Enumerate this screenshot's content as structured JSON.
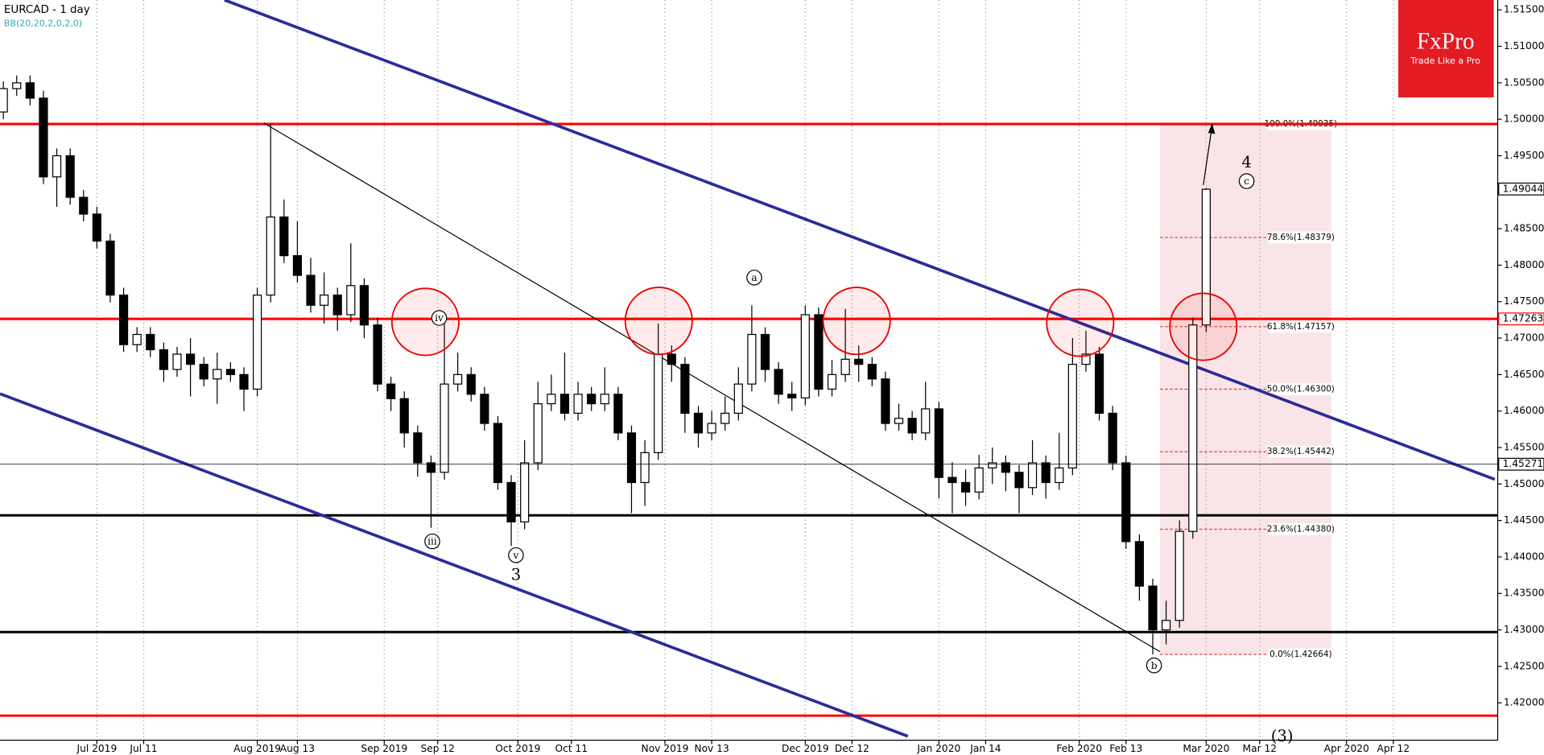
{
  "chart_data": {
    "type": "candlestick",
    "title": "EURCAD - 1 day",
    "subtitle": "BB(20,20,2,0,2,0)",
    "logo": {
      "name": "FxPro",
      "slogan": "Trade Like a Pro"
    },
    "xlim": [
      -0.5,
      222
    ],
    "xticks": [
      {
        "value": 14,
        "label": "Jul 2019"
      },
      {
        "value": 21,
        "label": "Jul 11"
      },
      {
        "value": 38,
        "label": "Aug 2019"
      },
      {
        "value": 44,
        "label": "Aug 13"
      },
      {
        "value": 57,
        "label": "Sep 2019"
      },
      {
        "value": 65,
        "label": "Sep 12"
      },
      {
        "value": 77,
        "label": "Oct 2019"
      },
      {
        "value": 85,
        "label": "Oct 11"
      },
      {
        "value": 99,
        "label": "Nov 2019"
      },
      {
        "value": 106,
        "label": "Nov 13"
      },
      {
        "value": 120,
        "label": "Dec 2019"
      },
      {
        "value": 127,
        "label": "Dec 12"
      },
      {
        "value": 140,
        "label": "Jan 2020"
      },
      {
        "value": 147,
        "label": "Jan 14"
      },
      {
        "value": 161,
        "label": "Feb 2020"
      },
      {
        "value": 168,
        "label": "Feb 13"
      },
      {
        "value": 180,
        "label": "Mar 2020"
      },
      {
        "value": 188,
        "label": "Mar 12"
      },
      {
        "value": 201,
        "label": "Apr 2020"
      },
      {
        "value": 208,
        "label": "Apr 12"
      }
    ],
    "ylim": [
      1.41487,
      1.51635
    ],
    "yticks": [
      {
        "value": 1.515,
        "label": "1.51500"
      },
      {
        "value": 1.51,
        "label": "1.51000"
      },
      {
        "value": 1.505,
        "label": "1.50500"
      },
      {
        "value": 1.5,
        "label": "1.50000"
      },
      {
        "value": 1.495,
        "label": "1.49500"
      },
      {
        "value": 1.49,
        "label": "1.49000"
      },
      {
        "value": 1.485,
        "label": "1.48500"
      },
      {
        "value": 1.48,
        "label": "1.48000"
      },
      {
        "value": 1.475,
        "label": "1.47500"
      },
      {
        "value": 1.47,
        "label": "1.47000"
      },
      {
        "value": 1.465,
        "label": "1.46500"
      },
      {
        "value": 1.46,
        "label": "1.46000"
      },
      {
        "value": 1.455,
        "label": "1.45500"
      },
      {
        "value": 1.45,
        "label": "1.45000"
      },
      {
        "value": 1.445,
        "label": "1.44500"
      },
      {
        "value": 1.44,
        "label": "1.44000"
      },
      {
        "value": 1.435,
        "label": "1.43500"
      },
      {
        "value": 1.43,
        "label": "1.43000"
      },
      {
        "value": 1.425,
        "label": "1.42500"
      },
      {
        "value": 1.42,
        "label": "1.42000"
      }
    ],
    "grid": true,
    "x": [
      0,
      2,
      4,
      6,
      8,
      10,
      12,
      14,
      16,
      18,
      20,
      22,
      24,
      26,
      28,
      30,
      32,
      34,
      36,
      38,
      40,
      42,
      44,
      46,
      48,
      50,
      52,
      54,
      56,
      58,
      60,
      62,
      64,
      66,
      68,
      70,
      72,
      74,
      76,
      78,
      80,
      82,
      84,
      86,
      88,
      90,
      92,
      94,
      96,
      98,
      100,
      102,
      104,
      106,
      108,
      110,
      112,
      114,
      116,
      118,
      120,
      122,
      124,
      126,
      128,
      130,
      132,
      134,
      136,
      138,
      140,
      142,
      144,
      146,
      148,
      150,
      152,
      154,
      156,
      158,
      160,
      162,
      164,
      166,
      168,
      170,
      172,
      174,
      176,
      178,
      180
    ],
    "open": [
      1.501,
      1.5042,
      1.505,
      1.5029,
      1.4921,
      1.495,
      1.4893,
      1.487,
      1.4833,
      1.4759,
      1.4691,
      1.4705,
      1.4684,
      1.4657,
      1.4678,
      1.4664,
      1.4644,
      1.4657,
      1.465,
      1.463,
      1.4759,
      1.4866,
      1.4813,
      1.4786,
      1.4745,
      1.4759,
      1.4732,
      1.4772,
      1.4718,
      1.4637,
      1.4617,
      1.457,
      1.4529,
      1.4516,
      1.4637,
      1.465,
      1.4623,
      1.4583,
      1.4502,
      1.4448,
      1.4529,
      1.461,
      1.4623,
      1.4597,
      1.4623,
      1.461,
      1.4623,
      1.457,
      1.4502,
      1.4543,
      1.4678,
      1.4664,
      1.4597,
      1.457,
      1.4583,
      1.4597,
      1.4637,
      1.4705,
      1.4657,
      1.4623,
      1.4618,
      1.4732,
      1.463,
      1.465,
      1.4671,
      1.4664,
      1.4644,
      1.4583,
      1.459,
      1.457,
      1.4603,
      1.4509,
      1.4502,
      1.4489,
      1.4522,
      1.4529,
      1.4516,
      1.4495,
      1.4529,
      1.4502,
      1.4522,
      1.4664,
      1.4678,
      1.4597,
      1.4529,
      1.4421,
      1.436,
      1.43,
      1.4313,
      1.4435,
      1.4718
    ],
    "high": [
      1.5052,
      1.506,
      1.506,
      1.5039,
      1.496,
      1.496,
      1.4903,
      1.488,
      1.4843,
      1.4769,
      1.4715,
      1.4715,
      1.4694,
      1.4688,
      1.47,
      1.4674,
      1.468,
      1.4667,
      1.466,
      1.4769,
      1.4994,
      1.489,
      1.486,
      1.481,
      1.479,
      1.4769,
      1.483,
      1.4782,
      1.4728,
      1.4647,
      1.4627,
      1.458,
      1.4539,
      1.472,
      1.468,
      1.466,
      1.4633,
      1.4593,
      1.4512,
      1.456,
      1.464,
      1.465,
      1.468,
      1.464,
      1.4633,
      1.466,
      1.4633,
      1.458,
      1.456,
      1.472,
      1.469,
      1.4674,
      1.4607,
      1.46,
      1.462,
      1.466,
      1.4745,
      1.4715,
      1.4667,
      1.464,
      1.4745,
      1.4742,
      1.467,
      1.474,
      1.469,
      1.4674,
      1.4654,
      1.461,
      1.46,
      1.464,
      1.4613,
      1.453,
      1.452,
      1.454,
      1.455,
      1.4539,
      1.4526,
      1.456,
      1.4539,
      1.457,
      1.47,
      1.471,
      1.4688,
      1.4607,
      1.4539,
      1.4431,
      1.437,
      1.434,
      1.445,
      1.4728,
      1.4906
    ],
    "low": [
      1.5,
      1.5032,
      1.5019,
      1.4911,
      1.488,
      1.4883,
      1.486,
      1.4823,
      1.4749,
      1.4681,
      1.4681,
      1.4674,
      1.464,
      1.4647,
      1.462,
      1.4634,
      1.461,
      1.464,
      1.46,
      1.462,
      1.4749,
      1.4803,
      1.4776,
      1.4735,
      1.472,
      1.471,
      1.4722,
      1.47,
      1.4627,
      1.46,
      1.455,
      1.451,
      1.444,
      1.4506,
      1.4627,
      1.4613,
      1.4573,
      1.4492,
      1.4415,
      1.4438,
      1.4519,
      1.46,
      1.4587,
      1.4587,
      1.46,
      1.46,
      1.456,
      1.446,
      1.447,
      1.4533,
      1.464,
      1.457,
      1.455,
      1.456,
      1.4573,
      1.4587,
      1.4627,
      1.464,
      1.461,
      1.46,
      1.4608,
      1.462,
      1.462,
      1.464,
      1.464,
      1.4634,
      1.4573,
      1.4573,
      1.456,
      1.456,
      1.448,
      1.446,
      1.447,
      1.4479,
      1.45,
      1.449,
      1.446,
      1.4485,
      1.448,
      1.4492,
      1.4512,
      1.4654,
      1.4587,
      1.4519,
      1.4411,
      1.434,
      1.42664,
      1.428,
      1.4303,
      1.4425,
      1.4708
    ],
    "close": [
      1.5042,
      1.505,
      1.5029,
      1.4921,
      1.495,
      1.4893,
      1.487,
      1.4833,
      1.4759,
      1.4691,
      1.4705,
      1.4684,
      1.4657,
      1.4678,
      1.4664,
      1.4644,
      1.4657,
      1.465,
      1.463,
      1.4759,
      1.4866,
      1.4813,
      1.4786,
      1.4745,
      1.4759,
      1.4732,
      1.4772,
      1.4718,
      1.4637,
      1.4617,
      1.457,
      1.4529,
      1.4516,
      1.4637,
      1.465,
      1.4623,
      1.4583,
      1.4502,
      1.4448,
      1.4529,
      1.461,
      1.4623,
      1.4597,
      1.4623,
      1.461,
      1.4623,
      1.457,
      1.4502,
      1.4543,
      1.4678,
      1.4664,
      1.4597,
      1.457,
      1.4583,
      1.4597,
      1.4637,
      1.4705,
      1.4657,
      1.4623,
      1.4618,
      1.4732,
      1.463,
      1.465,
      1.4671,
      1.4664,
      1.4644,
      1.4583,
      1.459,
      1.457,
      1.4603,
      1.4509,
      1.4502,
      1.4489,
      1.4522,
      1.4529,
      1.4516,
      1.4495,
      1.4529,
      1.4502,
      1.4522,
      1.4664,
      1.4678,
      1.4597,
      1.4529,
      1.4421,
      1.436,
      1.43,
      1.4313,
      1.4435,
      1.4718,
      1.4904
    ],
    "levels": [
      {
        "value": 1.49935,
        "color": "#ff0000"
      },
      {
        "value": 1.47263,
        "color": "#ff0000"
      },
      {
        "value": 1.41824,
        "color": "#ff0000"
      },
      {
        "value": 1.4457,
        "color": "#000000"
      },
      {
        "value": 1.4297,
        "color": "#000000"
      }
    ],
    "price_labels": [
      1.49044,
      1.47263,
      1.45271
    ],
    "fib_levels": [
      {
        "value": 1.49935,
        "label": "100.0%(1.49935)"
      },
      {
        "value": 1.48379,
        "label": "78.6%(1.48379)"
      },
      {
        "value": 1.47157,
        "label": "61.8%(1.47157)"
      },
      {
        "value": 1.463,
        "label": "50.0%(1.46300)"
      },
      {
        "value": 1.45442,
        "label": "38.2%(1.45442)"
      },
      {
        "value": 1.4438,
        "label": "23.6%(1.44380)"
      },
      {
        "value": 1.42664,
        "label": "0.0%(1.42664)"
      }
    ],
    "annotations": [
      "iv",
      "iii",
      "v",
      "3",
      "a",
      "b",
      "c",
      "4",
      "(3)"
    ],
    "circled": [
      true,
      true,
      true,
      false,
      true,
      true,
      true,
      false,
      false
    ]
  }
}
